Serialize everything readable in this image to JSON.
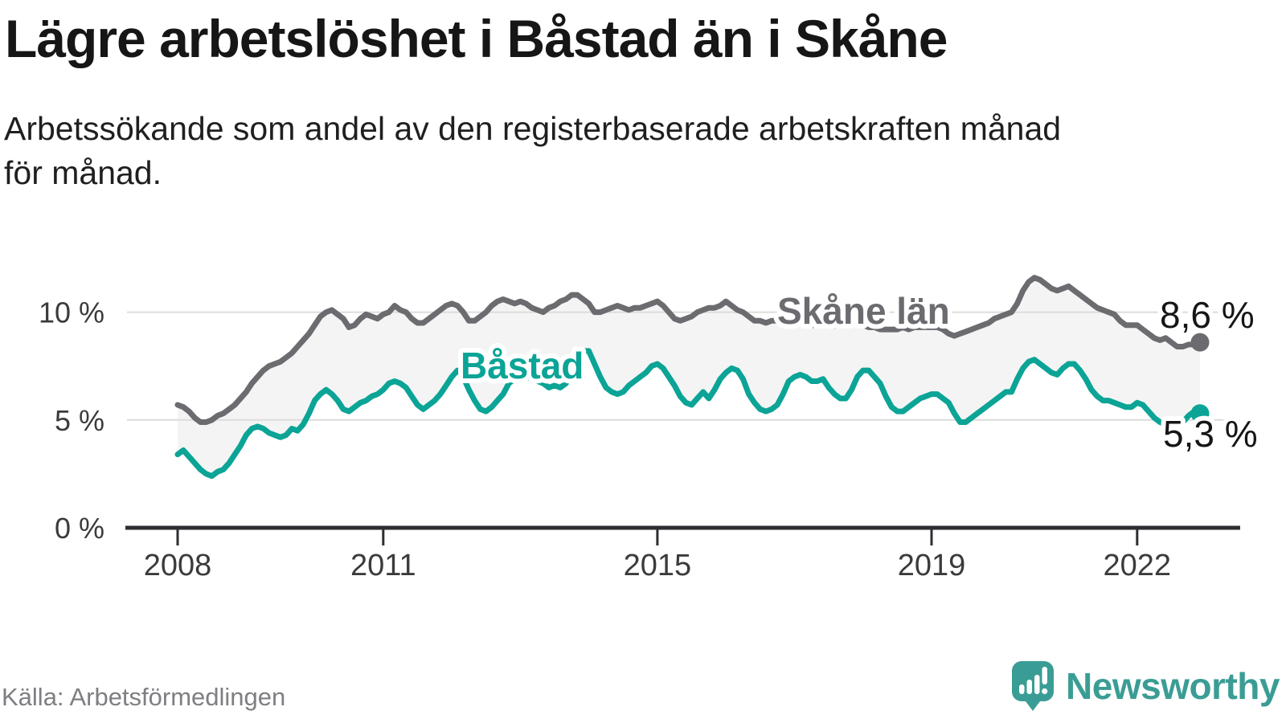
{
  "header": {
    "title": "Lägre arbetslöshet i Båstad än i Skåne",
    "subtitle_line1": "Arbetssökande som andel av den registerbaserade arbetskraften månad",
    "subtitle_line2": "för månad."
  },
  "footer": {
    "source": "Källa: Arbetsförmedlingen",
    "brand": "Newsworthy"
  },
  "colors": {
    "skane_line": "#6b6b70",
    "bastad_line": "#0ba496",
    "band_fill": "#f4f4f5",
    "gridline": "#dcdcdc",
    "axis": "#2e2e32",
    "tick_text": "#3b3b3b",
    "value_text": "#161616",
    "brand_teal": "#3a9d95"
  },
  "chart_data": {
    "type": "line",
    "title": "Lägre arbetslöshet i Båstad än i Skåne",
    "subtitle": "Arbetssökande som andel av den registerbaserade arbetskraften månad för månad.",
    "x_unit": "month",
    "x_start": "2008-01",
    "x_end": "2022-12",
    "grid": "horizontal",
    "legend_position": "inline-labels",
    "ylim": [
      0,
      11.8
    ],
    "y_ticks": [
      {
        "value": 0,
        "label": "0 %"
      },
      {
        "value": 5,
        "label": "5 %"
      },
      {
        "value": 10,
        "label": "10 %"
      }
    ],
    "x_ticks": [
      {
        "value": 2008,
        "label": "2008"
      },
      {
        "value": 2011,
        "label": "2011"
      },
      {
        "value": 2015,
        "label": "2015"
      },
      {
        "value": 2019,
        "label": "2019"
      },
      {
        "value": 2022,
        "label": "2022"
      }
    ],
    "series": [
      {
        "name": "Skåne län",
        "color": "#6b6b70",
        "end_label": "8,6 %",
        "end_value": 8.6,
        "values": [
          5.7,
          5.6,
          5.4,
          5.1,
          4.9,
          4.9,
          5.0,
          5.2,
          5.3,
          5.5,
          5.7,
          6.0,
          6.3,
          6.7,
          7.0,
          7.3,
          7.5,
          7.6,
          7.7,
          7.9,
          8.1,
          8.4,
          8.7,
          9.0,
          9.4,
          9.8,
          10.0,
          10.1,
          9.9,
          9.7,
          9.3,
          9.4,
          9.7,
          9.9,
          9.8,
          9.7,
          9.9,
          10.0,
          10.3,
          10.1,
          10.0,
          9.7,
          9.5,
          9.5,
          9.7,
          9.9,
          10.1,
          10.3,
          10.4,
          10.3,
          10.0,
          9.6,
          9.6,
          9.8,
          10.0,
          10.3,
          10.5,
          10.6,
          10.5,
          10.4,
          10.5,
          10.4,
          10.2,
          10.1,
          10.0,
          10.2,
          10.3,
          10.5,
          10.6,
          10.8,
          10.8,
          10.6,
          10.4,
          10.0,
          10.0,
          10.1,
          10.2,
          10.3,
          10.2,
          10.1,
          10.2,
          10.2,
          10.3,
          10.4,
          10.5,
          10.3,
          10.0,
          9.7,
          9.6,
          9.7,
          9.8,
          10.0,
          10.1,
          10.2,
          10.2,
          10.3,
          10.5,
          10.3,
          10.1,
          10.0,
          9.8,
          9.6,
          9.6,
          9.5,
          9.6,
          9.6,
          9.6,
          9.6,
          9.7,
          9.6,
          9.5,
          9.4,
          9.4,
          9.4,
          9.4,
          9.4,
          9.4,
          9.5,
          9.5,
          9.5,
          9.4,
          9.3,
          9.3,
          9.2,
          9.2,
          9.2,
          9.2,
          9.3,
          9.2,
          9.3,
          9.3,
          9.3,
          9.3,
          9.3,
          9.2,
          9.0,
          8.9,
          9.0,
          9.1,
          9.2,
          9.3,
          9.4,
          9.5,
          9.7,
          9.8,
          9.9,
          10.0,
          10.4,
          11.0,
          11.4,
          11.6,
          11.5,
          11.3,
          11.1,
          11.0,
          11.1,
          11.2,
          11.0,
          10.8,
          10.6,
          10.4,
          10.2,
          10.1,
          10.0,
          9.9,
          9.6,
          9.4,
          9.4,
          9.4,
          9.2,
          9.0,
          8.8,
          8.7,
          8.8,
          8.6,
          8.4,
          8.4,
          8.5,
          8.5,
          8.6
        ]
      },
      {
        "name": "Båstad",
        "color": "#0ba496",
        "end_label": "5,3 %",
        "end_value": 5.3,
        "values": [
          3.4,
          3.6,
          3.3,
          3.0,
          2.7,
          2.5,
          2.4,
          2.6,
          2.7,
          3.0,
          3.4,
          3.8,
          4.3,
          4.6,
          4.7,
          4.6,
          4.4,
          4.3,
          4.2,
          4.3,
          4.6,
          4.5,
          4.8,
          5.3,
          5.9,
          6.2,
          6.4,
          6.2,
          5.9,
          5.5,
          5.4,
          5.6,
          5.8,
          5.9,
          6.1,
          6.2,
          6.4,
          6.7,
          6.8,
          6.7,
          6.5,
          6.1,
          5.7,
          5.5,
          5.7,
          5.9,
          6.2,
          6.6,
          7.0,
          7.3,
          7.0,
          6.4,
          5.9,
          5.5,
          5.4,
          5.6,
          5.9,
          6.2,
          6.7,
          6.9,
          7.0,
          7.0,
          6.9,
          6.8,
          6.7,
          6.5,
          6.6,
          6.5,
          6.7,
          7.2,
          7.9,
          8.2,
          8.2,
          7.6,
          7.0,
          6.5,
          6.3,
          6.2,
          6.3,
          6.6,
          6.8,
          7.0,
          7.2,
          7.5,
          7.6,
          7.4,
          7.0,
          6.6,
          6.1,
          5.8,
          5.7,
          6.0,
          6.3,
          6.0,
          6.4,
          6.9,
          7.2,
          7.4,
          7.3,
          6.9,
          6.2,
          5.8,
          5.5,
          5.4,
          5.5,
          5.7,
          6.2,
          6.8,
          7.0,
          7.1,
          7.0,
          6.8,
          6.8,
          6.9,
          6.5,
          6.2,
          6.0,
          6.0,
          6.4,
          7.0,
          7.3,
          7.3,
          7.0,
          6.7,
          6.1,
          5.6,
          5.4,
          5.4,
          5.6,
          5.8,
          6.0,
          6.1,
          6.2,
          6.2,
          6.0,
          5.8,
          5.3,
          4.9,
          4.9,
          5.1,
          5.3,
          5.5,
          5.7,
          5.9,
          6.1,
          6.3,
          6.3,
          6.9,
          7.4,
          7.7,
          7.8,
          7.6,
          7.4,
          7.2,
          7.1,
          7.4,
          7.6,
          7.6,
          7.3,
          6.9,
          6.4,
          6.1,
          5.9,
          5.9,
          5.8,
          5.7,
          5.6,
          5.6,
          5.8,
          5.7,
          5.4,
          5.1,
          4.9,
          4.8,
          4.7,
          4.8,
          4.9,
          5.2,
          5.4,
          5.3
        ]
      }
    ]
  }
}
